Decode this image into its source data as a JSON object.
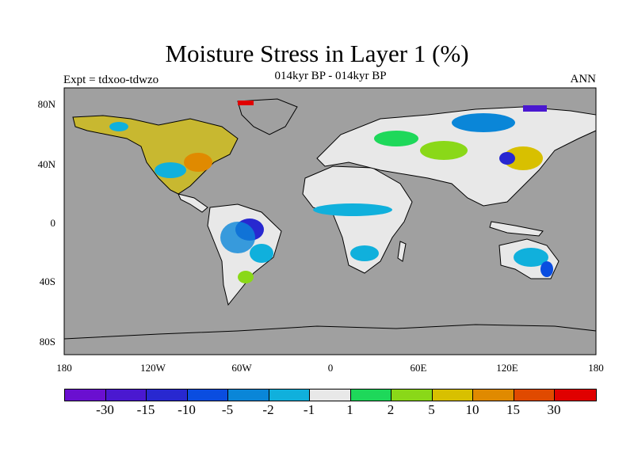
{
  "title": "Moisture Stress in Layer 1 (%)",
  "subtitle": "014kyr BP - 014kyr BP",
  "expt": "Expt = tdxoo-tdwzo",
  "season": "ANN",
  "axes": {
    "y_ticks": [
      "80N",
      "40N",
      "0",
      "40S",
      "80S"
    ],
    "x_ticks": [
      "180",
      "120W",
      "60W",
      "0",
      "60E",
      "120E",
      "180"
    ]
  },
  "colorbar": {
    "colors": [
      "#6a0fd0",
      "#4a18d0",
      "#2828d0",
      "#0a4de0",
      "#0a86d8",
      "#10b0dc",
      "#e8e8e8",
      "#1ed85a",
      "#8ad818",
      "#d8c000",
      "#e08a00",
      "#e04a00",
      "#e00000"
    ],
    "labels": [
      "-30",
      "-15",
      "-10",
      "-5",
      "-2",
      "-1",
      "1",
      "2",
      "5",
      "10",
      "15",
      "30"
    ]
  },
  "ocean_color": "#a0a0a0"
}
